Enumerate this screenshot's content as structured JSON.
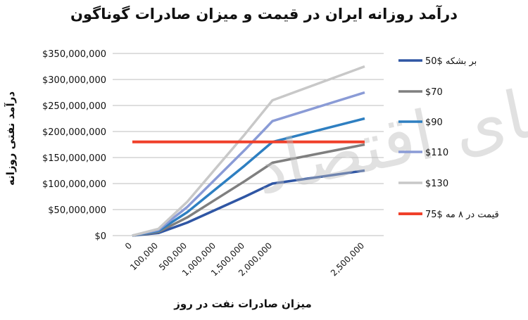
{
  "chart_data": {
    "type": "line",
    "title": "درآمد روزانه ایران در قیمت و میزان صادرات گوناگون",
    "xlabel": "میزان صادرات نفت در روز",
    "ylabel": "درآمد نفتی روزانه",
    "categories": [
      "0",
      "100,000",
      "500,000",
      "1,000,000",
      "1,500,000",
      "2,000,000",
      "2,500,000"
    ],
    "y_ticks": [
      "$0",
      "$50,000,000",
      "$100,000,000",
      "$150,000,000",
      "$200,000,000",
      "$250,000,000",
      "$300,000,000",
      "$350,000,000"
    ],
    "ylim": [
      0,
      350000000
    ],
    "grid": true,
    "legend_position": "right",
    "series": [
      {
        "name": "بر بشکه $50",
        "color": "#2f56a4",
        "values": [
          0,
          5000000,
          25000000,
          50000000,
          75000000,
          100000000,
          125000000
        ]
      },
      {
        "name": "$70",
        "color": "#7f7f7f",
        "values": [
          0,
          7000000,
          35000000,
          70000000,
          105000000,
          140000000,
          175000000
        ]
      },
      {
        "name": "$90",
        "color": "#2e7fc1",
        "values": [
          0,
          9000000,
          45000000,
          90000000,
          135000000,
          180000000,
          225000000
        ]
      },
      {
        "name": "$110",
        "color": "#8a9bd6",
        "values": [
          0,
          11000000,
          55000000,
          110000000,
          165000000,
          220000000,
          275000000
        ]
      },
      {
        "name": "$130",
        "color": "#c8c8c8",
        "values": [
          0,
          13000000,
          65000000,
          130000000,
          195000000,
          260000000,
          325000000
        ]
      },
      {
        "name": "قیمت در ۸ مه $75",
        "color": "#f0402a",
        "values": [
          180000000,
          180000000,
          180000000,
          180000000,
          180000000,
          180000000,
          180000000
        ]
      }
    ]
  },
  "watermark": "دنیای اقتصاد"
}
